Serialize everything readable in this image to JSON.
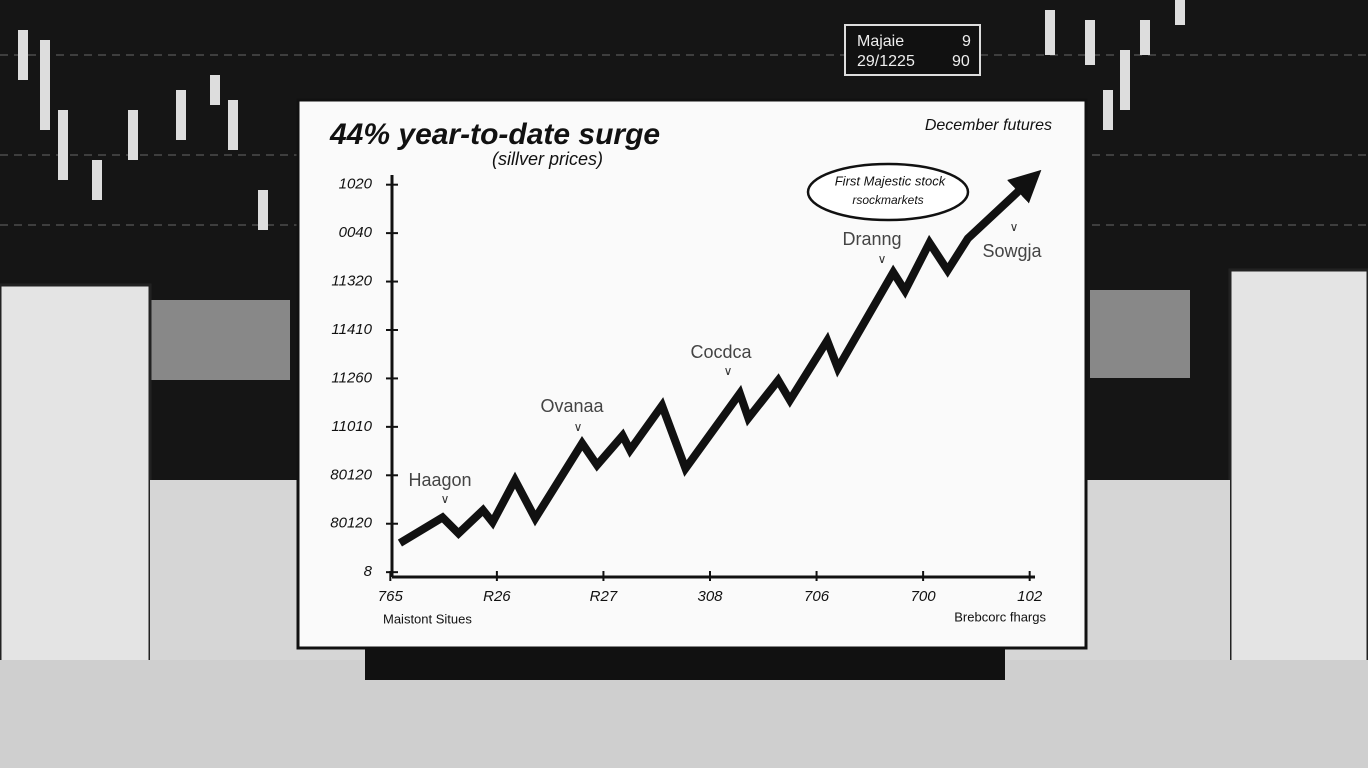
{
  "chart_data": {
    "type": "line",
    "title": "44% year-to-date surge",
    "subtitle": "(sillver prices)",
    "note": "December futures",
    "callout": [
      "First Majestic stock",
      "rsockmarkets"
    ],
    "annotations": [
      "Haagon",
      "Ovanaa",
      "Cocdca",
      "Dranng",
      "Sowgja"
    ],
    "footer_left": "Maistont Situes",
    "footer_right": "Brebcorc fhargs",
    "board": [
      "Majaie",
      "9",
      "29/1225",
      "90"
    ],
    "x": [
      0.09,
      0.49,
      0.64,
      0.87,
      0.96,
      1.17,
      1.36,
      1.8,
      1.94,
      2.18,
      2.25,
      2.55,
      2.77,
      3.28,
      3.36,
      3.64,
      3.75,
      4.1,
      4.2,
      4.72,
      4.83,
      5.06,
      5.23,
      5.42,
      6.0
    ],
    "values": [
      0.6,
      1.13,
      0.8,
      1.28,
      1.03,
      1.9,
      1.11,
      2.66,
      2.21,
      2.82,
      2.52,
      3.44,
      2.14,
      3.69,
      3.18,
      3.96,
      3.55,
      4.78,
      4.21,
      6.19,
      5.81,
      6.8,
      6.23,
      6.89,
      8.08
    ],
    "color": "#111111",
    "xlim": [
      -0.05,
      6.05
    ],
    "xticks": [
      {
        "value": 0,
        "label": "765"
      },
      {
        "value": 1,
        "label": "R26"
      },
      {
        "value": 2,
        "label": "R27"
      },
      {
        "value": 3,
        "label": "308"
      },
      {
        "value": 4,
        "label": "706"
      },
      {
        "value": 5,
        "label": "700"
      },
      {
        "value": 6,
        "label": "102"
      }
    ],
    "ylim": [
      -0.1,
      8.2
    ],
    "yticks": [
      {
        "value": 0,
        "label": "8"
      },
      {
        "value": 1,
        "label": "80120"
      },
      {
        "value": 2,
        "label": "80120"
      },
      {
        "value": 3,
        "label": "11010"
      },
      {
        "value": 4,
        "label": "11260"
      },
      {
        "value": 5,
        "label": "11410"
      },
      {
        "value": 6,
        "label": "11320"
      },
      {
        "value": 7,
        "label": "0040"
      },
      {
        "value": 8,
        "label": "1020"
      }
    ]
  }
}
